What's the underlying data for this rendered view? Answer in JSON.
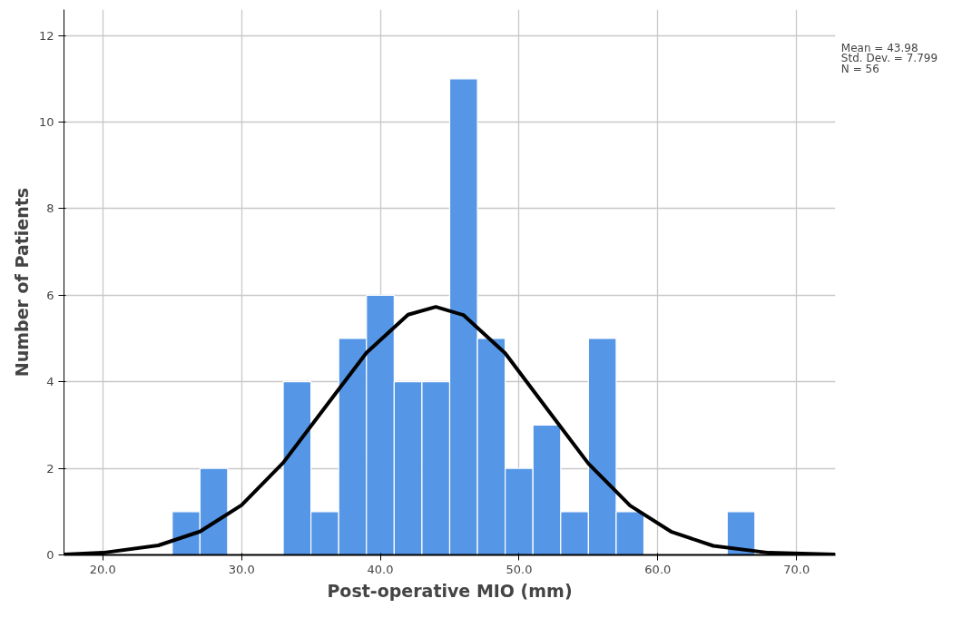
{
  "chart_data": {
    "type": "histogram",
    "xlabel": "Post-operative MIO (mm)",
    "ylabel": "Number of Patients",
    "bins": [
      25,
      27,
      29,
      31,
      33,
      35,
      37,
      39,
      41,
      43,
      45,
      47,
      49,
      51,
      53,
      55,
      57,
      59,
      61,
      63,
      65,
      67
    ],
    "values": [
      1,
      2,
      0,
      0,
      4,
      1,
      5,
      6,
      4,
      4,
      11,
      5,
      2,
      3,
      1,
      5,
      1,
      0,
      0,
      0,
      1
    ],
    "color": "#5596e6",
    "series": [
      {
        "type": "line",
        "color": "#000000",
        "x": [
          17.2,
          20,
          24,
          27,
          30,
          33,
          36,
          39,
          42,
          44,
          46,
          49,
          52,
          55,
          58,
          61,
          64,
          68,
          72.8
        ],
        "values": [
          0.01,
          0.05,
          0.22,
          0.54,
          1.15,
          2.13,
          3.4,
          4.67,
          5.55,
          5.73,
          5.54,
          4.66,
          3.38,
          2.11,
          1.14,
          0.53,
          0.21,
          0.05,
          0.01
        ]
      }
    ],
    "xlim": [
      17.2,
      72.8
    ],
    "ylim": [
      0,
      12.6
    ],
    "xticks": [
      {
        "value": 20,
        "label": "20.0"
      },
      {
        "value": 30,
        "label": "30.0"
      },
      {
        "value": 40,
        "label": "40.0"
      },
      {
        "value": 50,
        "label": "50.0"
      },
      {
        "value": 60,
        "label": "60.0"
      },
      {
        "value": 70,
        "label": "70.0"
      }
    ],
    "yticks": [
      0,
      2,
      4,
      6,
      8,
      10,
      12
    ],
    "grid": true,
    "marker": "none",
    "line_style": "solid",
    "annotations": [
      "Mean = 43.98",
      "Std. Dev. = 7.799",
      "N = 56"
    ]
  }
}
